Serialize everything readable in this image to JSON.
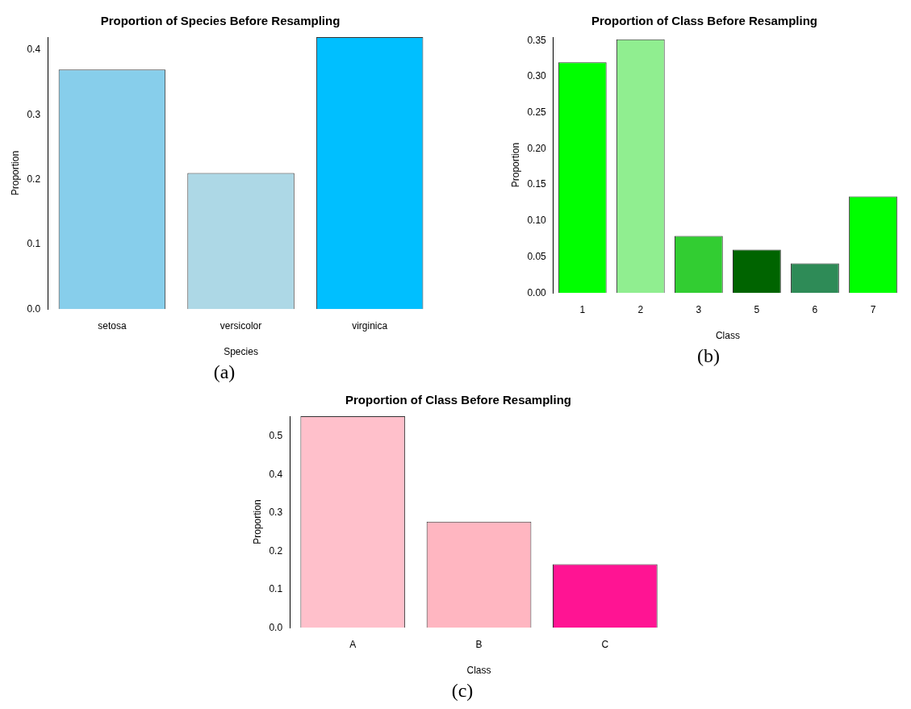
{
  "chart_data": [
    {
      "type": "bar",
      "title": "Proportion of Species Before Resampling",
      "xlabel": "Species",
      "ylabel": "Proportion",
      "categories": [
        "setosa",
        "versicolor",
        "virginica"
      ],
      "values": [
        0.37,
        0.21,
        0.42
      ],
      "colors": [
        "#87ceeb",
        "#add8e6",
        "#00bfff"
      ],
      "ylim": [
        0,
        0.42
      ],
      "yticks": [
        {
          "value": 0,
          "label": "0.0"
        },
        0.1,
        0.2,
        0.3,
        0.4
      ],
      "grid": false,
      "annotations": [
        "(a)"
      ]
    },
    {
      "type": "bar",
      "title": "Proportion of Class Before Resampling",
      "xlabel": "Class",
      "ylabel": "Proportion",
      "categories": [
        "1",
        "2",
        "3",
        "5",
        "6",
        "7"
      ],
      "values": [
        0.32,
        0.352,
        0.079,
        0.06,
        0.041,
        0.134
      ],
      "colors": [
        "#00ff00",
        "#90ee90",
        "#32cd32",
        "#006400",
        "#2e8b57",
        "#00ff00"
      ],
      "ylim": [
        0,
        0.355
      ],
      "yticks": [
        {
          "value": 0,
          "label": "0.00"
        },
        {
          "value": 0.05,
          "label": "0.05"
        },
        {
          "value": 0.1,
          "label": "0.10"
        },
        {
          "value": 0.15,
          "label": "0.15"
        },
        {
          "value": 0.2,
          "label": "0.20"
        },
        {
          "value": 0.25,
          "label": "0.25"
        },
        {
          "value": 0.3,
          "label": "0.30"
        },
        {
          "value": 0.35,
          "label": "0.35"
        }
      ],
      "grid": false,
      "annotations": [
        "(b)"
      ]
    },
    {
      "type": "bar",
      "title": "Proportion of Class Before Resampling",
      "xlabel": "Class",
      "ylabel": "Proportion",
      "categories": [
        "A",
        "B",
        "C"
      ],
      "values": [
        0.553,
        0.277,
        0.166
      ],
      "colors": [
        "#ffc0cb",
        "#ffb6c1",
        "#ff1493"
      ],
      "ylim": [
        0,
        0.553
      ],
      "yticks": [
        {
          "value": 0,
          "label": "0.0"
        },
        {
          "value": 0.1,
          "label": "0.1"
        },
        {
          "value": 0.2,
          "label": "0.2"
        },
        {
          "value": 0.3,
          "label": "0.3"
        },
        {
          "value": 0.4,
          "label": "0.4"
        },
        {
          "value": 0.5,
          "label": "0.5"
        }
      ],
      "grid": false,
      "annotations": [
        "(c)"
      ]
    }
  ]
}
